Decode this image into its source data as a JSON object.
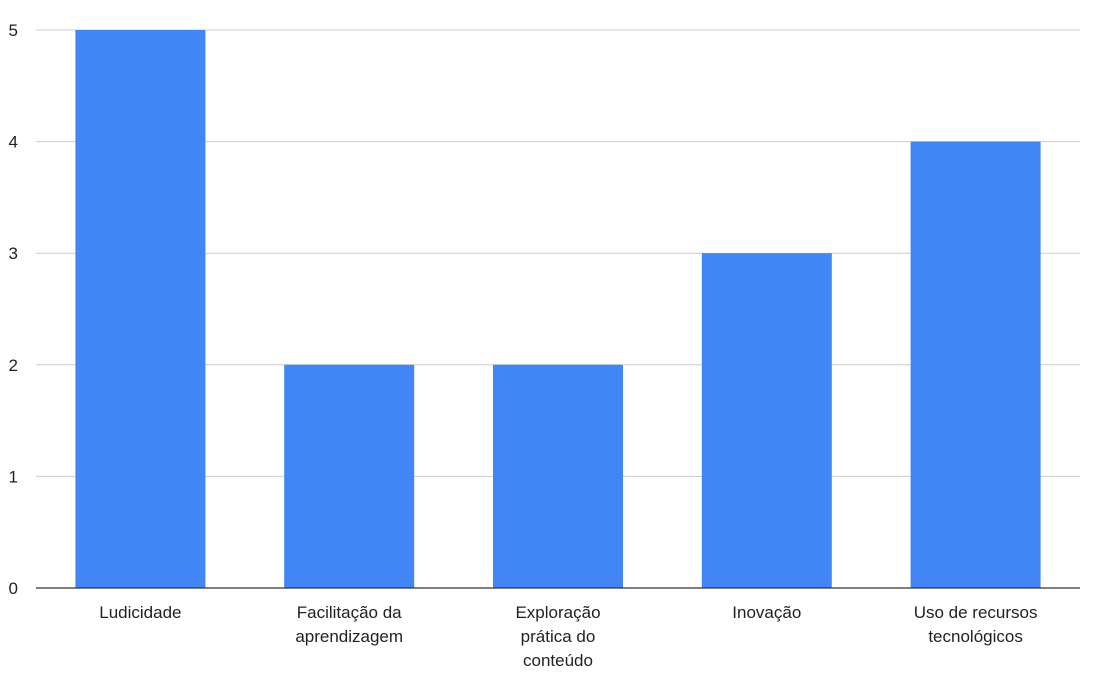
{
  "chart_data": {
    "type": "bar",
    "categories": [
      [
        "Ludicidade"
      ],
      [
        "Facilitação da",
        "aprendizagem"
      ],
      [
        "Exploração",
        "prática do",
        "conteúdo"
      ],
      [
        "Inovação"
      ],
      [
        "Uso de recursos",
        "tecnológicos"
      ]
    ],
    "values": [
      5,
      2,
      2,
      3,
      4
    ],
    "ylim": [
      0,
      5
    ],
    "yticks": [
      0,
      1,
      2,
      3,
      4,
      5
    ],
    "grid": true,
    "colors": {
      "bar": "#4285f4",
      "grid": "#cccccc",
      "axis": "#333333"
    }
  }
}
